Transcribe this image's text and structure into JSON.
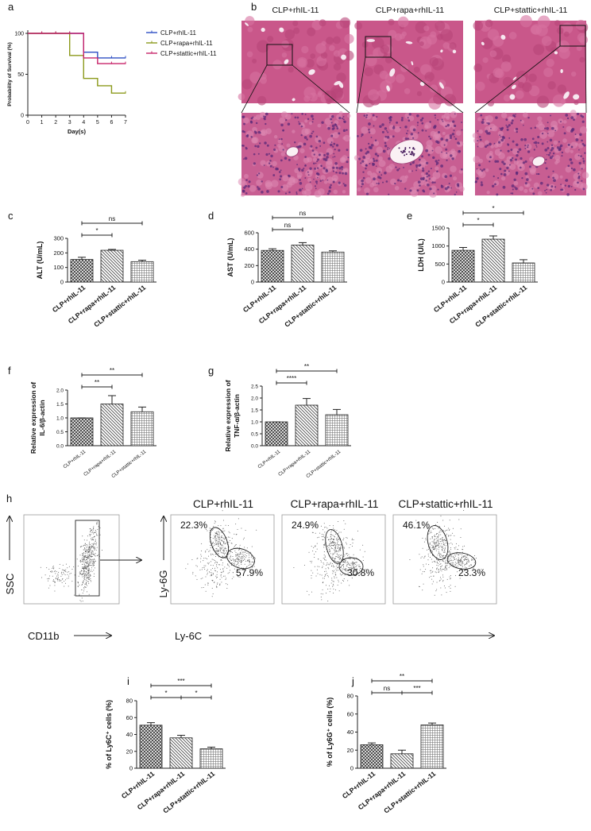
{
  "chart_data": [
    {
      "type": "line",
      "panel": "a",
      "ylabel": "Probability of Survival (%)",
      "xlabel": "Day(s)",
      "x": [
        0,
        1,
        2,
        3,
        4,
        5,
        6,
        7
      ],
      "xlim": [
        0,
        7
      ],
      "xticks": [
        0,
        1,
        2,
        3,
        4,
        5,
        6,
        7
      ],
      "ylim": [
        0,
        100
      ],
      "yticks": [
        0,
        50,
        100
      ],
      "legend": "right",
      "series": [
        {
          "name": "CLP+rhIL-11",
          "color": "#2f4fc4",
          "values": [
            100,
            100,
            100,
            100,
            77,
            70,
            70,
            70
          ]
        },
        {
          "name": "CLP+rapa+rhIL-11",
          "color": "#8c9a1c",
          "values": [
            100,
            100,
            100,
            73,
            45,
            36,
            27,
            27
          ]
        },
        {
          "name": "CLP+stattic+rhIL-11",
          "color": "#c8246a",
          "values": [
            100,
            100,
            100,
            100,
            70,
            63,
            63,
            63
          ]
        }
      ]
    },
    {
      "type": "bar",
      "panel": "c",
      "ylabel": "ALT (U/mL)",
      "categories": [
        "CLP+rhIL-11",
        "CLP+rapa+rhIL-11",
        "CLP+stattic+rhIL-11"
      ],
      "values": [
        155,
        218,
        140
      ],
      "errors": [
        15,
        6,
        10
      ],
      "ylim": [
        0,
        300
      ],
      "yticks": [
        0,
        100,
        200,
        300
      ],
      "brackets": [
        {
          "from": 0,
          "to": 1,
          "label": "*"
        },
        {
          "from": 0,
          "to": 2,
          "label": "ns"
        }
      ]
    },
    {
      "type": "bar",
      "panel": "d",
      "ylabel": "AST (U/mL)",
      "categories": [
        "CLP+rhIL-11",
        "CLP+rapa+rhIL-11",
        "CLP+stattic+rhIL-11"
      ],
      "values": [
        385,
        450,
        365
      ],
      "errors": [
        20,
        30,
        15
      ],
      "ylim": [
        0,
        600
      ],
      "yticks": [
        0,
        200,
        400,
        600
      ],
      "brackets": [
        {
          "from": 0,
          "to": 1,
          "label": "ns"
        },
        {
          "from": 0,
          "to": 2,
          "label": "ns"
        }
      ]
    },
    {
      "type": "bar",
      "panel": "e",
      "ylabel": "LDH (U/L)",
      "categories": [
        "CLP+rhIL-11",
        "CLP+rapa+rhIL-11",
        "CLP+stattic+rhIL-11"
      ],
      "values": [
        880,
        1190,
        530
      ],
      "errors": [
        80,
        90,
        90
      ],
      "ylim": [
        0,
        1500
      ],
      "yticks": [
        0,
        500,
        1000,
        1500
      ],
      "brackets": [
        {
          "from": 0,
          "to": 1,
          "label": "*"
        },
        {
          "from": 0,
          "to": 2,
          "label": "*"
        }
      ]
    },
    {
      "type": "bar",
      "panel": "f",
      "ylabel": [
        "Relative expression of",
        "IL-6/β-actin"
      ],
      "categories": [
        "CLP+rhIL-11",
        "CLP+rapa+rhIL-11",
        "CLP+stattic+rhIL-11"
      ],
      "values": [
        1.0,
        1.5,
        1.22
      ],
      "errors": [
        0,
        0.3,
        0.17
      ],
      "ylim": [
        0,
        2
      ],
      "yticks": [
        {
          "value": 0,
          "label": "0.0"
        },
        0.5,
        {
          "value": 1,
          "label": "1.0"
        },
        1.5,
        {
          "value": 2,
          "label": "2.0"
        }
      ],
      "brackets": [
        {
          "from": 0,
          "to": 1,
          "label": "**"
        },
        {
          "from": 0,
          "to": 2,
          "label": "**"
        }
      ]
    },
    {
      "type": "bar",
      "panel": "g",
      "ylabel": [
        "Relative expression of",
        "TNF-α/β-actin"
      ],
      "categories": [
        "CLP+rhIL-11",
        "CLP+rapa+rhIL-11",
        "CLP+stattic+rhIL-11"
      ],
      "values": [
        1.0,
        1.7,
        1.3
      ],
      "errors": [
        0,
        0.28,
        0.22
      ],
      "ylim": [
        0,
        2.5
      ],
      "yticks": [
        {
          "value": 0,
          "label": "0.0"
        },
        0.5,
        {
          "value": 1,
          "label": "1.0"
        },
        1.5,
        {
          "value": 2,
          "label": "2.0"
        },
        2.5
      ],
      "brackets": [
        {
          "from": 0,
          "to": 1,
          "label": "****"
        },
        {
          "from": 0,
          "to": 2,
          "label": "**"
        }
      ]
    },
    {
      "type": "bar",
      "panel": "i",
      "ylabel": "% of Ly6C⁺ cells (%)",
      "categories": [
        "CLP+rhIL-11",
        "CLP+rapa+rhIL-11",
        "CLP+stattic+rhIL-11"
      ],
      "values": [
        51,
        36,
        23
      ],
      "errors": [
        3,
        3,
        2
      ],
      "ylim": [
        0,
        80
      ],
      "yticks": [
        0,
        20,
        40,
        60,
        80
      ],
      "brackets": [
        {
          "from": 0,
          "to": 1,
          "label": "*"
        },
        {
          "from": 1,
          "to": 2,
          "label": "*"
        },
        {
          "from": 0,
          "to": 2,
          "label": "***"
        }
      ]
    },
    {
      "type": "bar",
      "panel": "j",
      "ylabel": "% of Ly6G⁺ cells (%)",
      "categories": [
        "CLP+rhIL-11",
        "CLP+rapa+rhIL-11",
        "CLP+stattic+rhIL-11"
      ],
      "values": [
        26,
        16,
        48
      ],
      "errors": [
        2,
        4,
        2
      ],
      "ylim": [
        0,
        80
      ],
      "yticks": [
        0,
        20,
        40,
        60,
        80
      ],
      "brackets": [
        {
          "from": 0,
          "to": 1,
          "label": "ns"
        },
        {
          "from": 1,
          "to": 2,
          "label": "***"
        },
        {
          "from": 0,
          "to": 2,
          "label": "**"
        }
      ]
    }
  ],
  "histology": {
    "panel": "b",
    "titles": [
      "CLP+rhIL-11",
      "CLP+rapa+rhIL-11",
      "CLP+stattic+rhIL-11"
    ]
  },
  "flow": {
    "panel": "h",
    "gate_ylabel": "SSC",
    "gate_xlabel": "CD11b",
    "titles": [
      "CLP+rhIL-11",
      "CLP+rapa+rhIL-11",
      "CLP+stattic+rhIL-11"
    ],
    "ylabel": "Ly-6G",
    "xlabel": "Ly-6C",
    "percentages": [
      [
        "22.3%",
        "57.9%"
      ],
      [
        "24.9%",
        "30.8%"
      ],
      [
        "46.1%",
        "23.3%"
      ]
    ]
  }
}
